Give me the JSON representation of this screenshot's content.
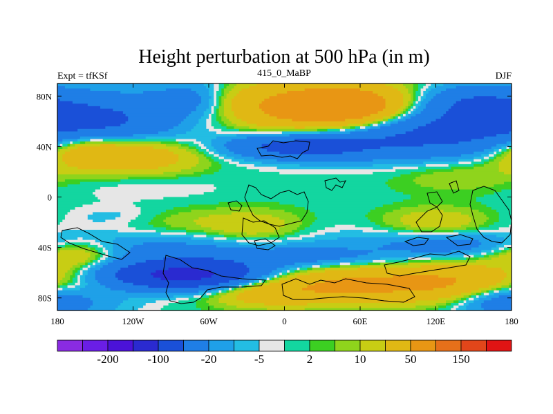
{
  "title": "Height perturbation at 500 hPa (in m)",
  "left_string": "Expt = tfKSf",
  "center_string": "415_0_MaBP",
  "right_string": "DJF",
  "colors": {
    "fill_background": "#e6e6e6",
    "coastline": "#000000"
  },
  "chart_data": {
    "type": "heatmap",
    "title": "Height perturbation at 500 hPa (in m)",
    "xlabel": "",
    "ylabel": "",
    "x_ticks": [
      {
        "value": -180,
        "label": "180"
      },
      {
        "value": -120,
        "label": "120W"
      },
      {
        "value": -60,
        "label": "60W"
      },
      {
        "value": 0,
        "label": "0"
      },
      {
        "value": 60,
        "label": "60E"
      },
      {
        "value": 120,
        "label": "120E"
      },
      {
        "value": 180,
        "label": "180"
      }
    ],
    "y_ticks": [
      {
        "value": 80,
        "label": "80N"
      },
      {
        "value": 40,
        "label": "40N"
      },
      {
        "value": 0,
        "label": "0"
      },
      {
        "value": -40,
        "label": "40S"
      },
      {
        "value": -80,
        "label": "80S"
      }
    ],
    "xlim": [
      -180,
      180
    ],
    "ylim": [
      -90,
      90
    ],
    "colorbar": {
      "colors": [
        "#8a2be2",
        "#6a1ee6",
        "#4b12d8",
        "#2a2ad0",
        "#1a50d8",
        "#1f7ee6",
        "#1fa0e8",
        "#23bde3",
        "#e6e6e6",
        "#13d6a0",
        "#3ccf22",
        "#8fd41c",
        "#c8cd14",
        "#e0b814",
        "#e89614",
        "#e6701a",
        "#e2461a",
        "#e01414"
      ],
      "tick_labels": [
        {
          "after_box": 2,
          "label": "-200"
        },
        {
          "after_box": 4,
          "label": "-100"
        },
        {
          "after_box": 6,
          "label": "-20"
        },
        {
          "after_box": 8,
          "label": "-5"
        },
        {
          "after_box": 10,
          "label": "2"
        },
        {
          "after_box": 12,
          "label": "10"
        },
        {
          "after_box": 14,
          "label": "50"
        },
        {
          "after_box": 16,
          "label": "150"
        }
      ]
    },
    "anomalies": [
      {
        "lon": -145,
        "lat": 62,
        "slon": 45,
        "slat": 15,
        "amp": -48
      },
      {
        "lon": -70,
        "lat": 78,
        "slon": 25,
        "slat": 10,
        "amp": -28
      },
      {
        "lon": -160,
        "lat": 38,
        "slon": 28,
        "slat": 10,
        "amp": 42
      },
      {
        "lon": -115,
        "lat": 33,
        "slon": 35,
        "slat": 10,
        "amp": 38
      },
      {
        "lon": 25,
        "lat": 70,
        "slon": 45,
        "slat": 14,
        "amp": 85
      },
      {
        "lon": 60,
        "lat": 72,
        "slon": 25,
        "slat": 10,
        "amp": 40
      },
      {
        "lon": 10,
        "lat": 40,
        "slon": 40,
        "slat": 7,
        "amp": -60
      },
      {
        "lon": 110,
        "lat": 50,
        "slon": 70,
        "slat": 14,
        "amp": -60
      },
      {
        "lon": 150,
        "lat": 75,
        "slon": 30,
        "slat": 10,
        "amp": -40
      },
      {
        "lon": -40,
        "lat": 78,
        "slon": 20,
        "slat": 8,
        "amp": 12
      },
      {
        "lon": 140,
        "lat": 18,
        "slon": 40,
        "slat": 10,
        "amp": 12
      },
      {
        "lon": -115,
        "lat": 8,
        "slon": 50,
        "slat": 8,
        "amp": -5
      },
      {
        "lon": -130,
        "lat": -15,
        "slon": 30,
        "slat": 6,
        "amp": -8
      },
      {
        "lon": -90,
        "lat": -20,
        "slon": 35,
        "slat": 8,
        "amp": 10
      },
      {
        "lon": -25,
        "lat": -25,
        "slon": 30,
        "slat": 10,
        "amp": 20
      },
      {
        "lon": 120,
        "lat": -20,
        "slon": 30,
        "slat": 8,
        "amp": 20
      },
      {
        "lon": -100,
        "lat": -44,
        "slon": 60,
        "slat": 8,
        "amp": -20
      },
      {
        "lon": 20,
        "lat": -48,
        "slon": 50,
        "slat": 6,
        "amp": -25
      },
      {
        "lon": 130,
        "lat": -38,
        "slon": 40,
        "slat": 6,
        "amp": -20
      },
      {
        "lon": -165,
        "lat": -45,
        "slon": 25,
        "slat": 8,
        "amp": 35
      },
      {
        "lon": -80,
        "lat": -62,
        "slon": 45,
        "slat": 8,
        "amp": -120
      },
      {
        "lon": 140,
        "lat": -68,
        "slon": 55,
        "slat": 10,
        "amp": 55
      },
      {
        "lon": 40,
        "lat": -70,
        "slon": 45,
        "slat": 10,
        "amp": 45
      },
      {
        "lon": -20,
        "lat": -75,
        "slon": 30,
        "slat": 8,
        "amp": 30
      },
      {
        "lon": -165,
        "lat": -80,
        "slon": 35,
        "slat": 12,
        "amp": -20
      },
      {
        "lon": 170,
        "lat": -80,
        "slon": 25,
        "slat": 10,
        "amp": -30
      }
    ],
    "base_field": {
      "tropics_value": 0,
      "band_amp": -9,
      "band_center_lat": -35,
      "band_width_lat": 14
    }
  }
}
